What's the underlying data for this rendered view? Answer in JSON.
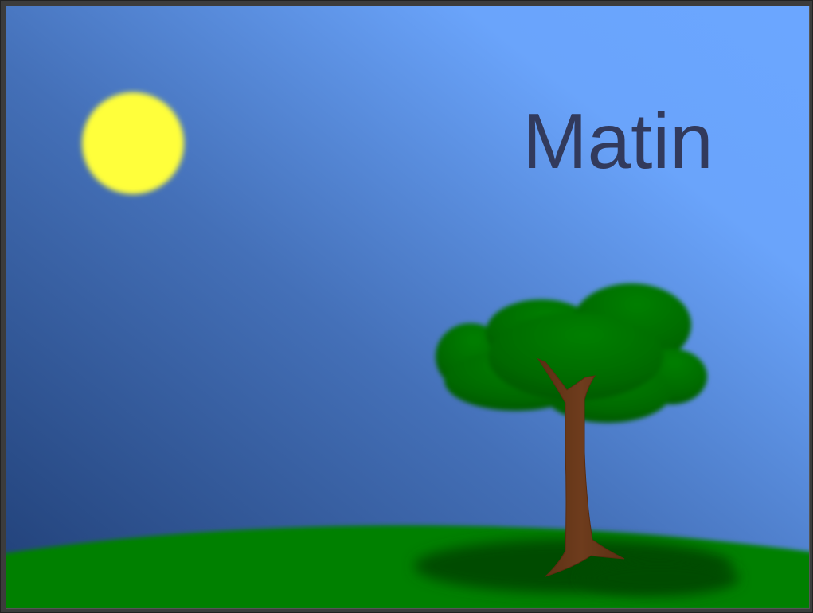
{
  "slide": {
    "title": "Matin"
  },
  "colors": {
    "sky_top_right": "#6aa6ff",
    "sky_bottom_left": "#234478",
    "sun": "#ffff3c",
    "grass": "#008000",
    "grass_shadow": "#004600",
    "foliage": "#007000",
    "trunk": "#6a3a1c",
    "title_text": "#323a5c"
  }
}
